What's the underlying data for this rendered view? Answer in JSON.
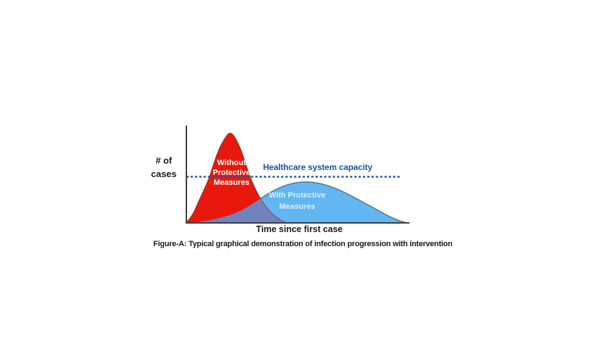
{
  "figure": {
    "ylabel_lines": [
      "# of",
      "cases"
    ],
    "xlabel": "Time since first case",
    "caption": "Figure-A: Typical graphical demonstration of infection progression with intervention",
    "capacity_label": "Healthcare system capacity",
    "red_curve_label_lines": [
      "Without",
      "Protective",
      "Measures"
    ],
    "blue_curve_label_lines": [
      "With Protective",
      "Measures"
    ]
  },
  "colors": {
    "red_fill": "#E8190C",
    "red_stroke": "#A63122",
    "blue_fill": "#62B7F3",
    "blue_stroke": "#5E7B8C",
    "overlap_fill": "#7083BE",
    "capacity_blue": "#17549E",
    "axis": "#3D3D3D",
    "label_on_red": "#FFFFFF",
    "label_on_blue": "#DCEEFC",
    "text": "#1A1A1A"
  },
  "chart_data": {
    "type": "area",
    "title": "Figure-A: Typical graphical demonstration of infection progression with intervention",
    "xlabel": "Time since first case",
    "ylabel": "# of cases",
    "grid": false,
    "axes_numeric": false,
    "units": "normalized: x = 0-100 time since first case, y = 0-100 where red peak = 100",
    "x_range": [
      0,
      100
    ],
    "y_range": [
      0,
      110
    ],
    "series": [
      {
        "name": "Without Protective Measures",
        "color": "#E8190C",
        "points": [
          [
            0,
            0
          ],
          [
            3,
            10
          ],
          [
            6,
            26
          ],
          [
            10,
            48
          ],
          [
            13,
            70
          ],
          [
            16,
            88
          ],
          [
            20,
            100
          ],
          [
            24,
            85
          ],
          [
            27,
            64
          ],
          [
            30,
            44
          ],
          [
            34,
            25
          ],
          [
            38,
            12
          ],
          [
            42,
            4
          ],
          [
            45,
            0
          ]
        ]
      },
      {
        "name": "With Protective Measures",
        "color": "#62B7F3",
        "points": [
          [
            1,
            0
          ],
          [
            8,
            2
          ],
          [
            16,
            6
          ],
          [
            24,
            13
          ],
          [
            31,
            23
          ],
          [
            38,
            34
          ],
          [
            44,
            41
          ],
          [
            50,
            45
          ],
          [
            56,
            45.5
          ],
          [
            62,
            43
          ],
          [
            68,
            38
          ],
          [
            74,
            31
          ],
          [
            80,
            23
          ],
          [
            86,
            15
          ],
          [
            92,
            7
          ],
          [
            97,
            2
          ],
          [
            100,
            0
          ]
        ]
      }
    ],
    "annotations": [
      {
        "type": "dashed_horizontal_line",
        "label": "Healthcare system capacity",
        "y": 51.5,
        "color": "#17549E"
      }
    ],
    "overlap_fill": "#7083BE",
    "legend_position": "labels inline on curves"
  }
}
